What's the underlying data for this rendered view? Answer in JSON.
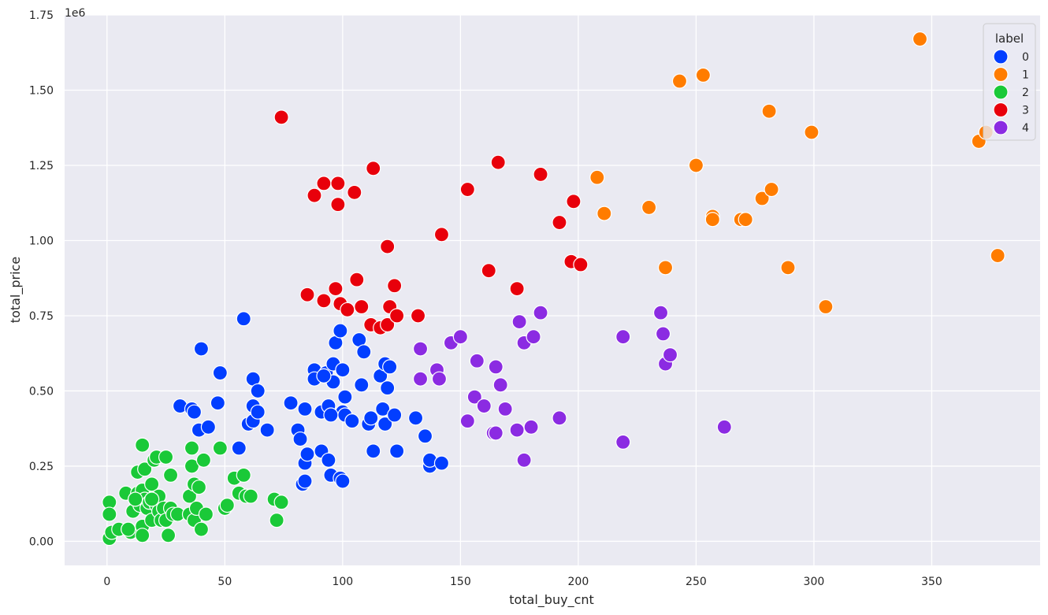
{
  "chart_data": {
    "type": "scatter",
    "xlabel": "total_buy_cnt",
    "ylabel": "total_price",
    "y_offset_text": "1e6",
    "xlim": [
      -18,
      396
    ],
    "ylim": [
      -0.08,
      1.75
    ],
    "x_ticks": [
      0,
      50,
      100,
      150,
      200,
      250,
      300,
      350
    ],
    "y_ticks": [
      0.0,
      0.25,
      0.5,
      0.75,
      1.0,
      1.25,
      1.5,
      1.75
    ],
    "y_tick_labels": [
      "0.00",
      "0.25",
      "0.50",
      "0.75",
      "1.00",
      "1.25",
      "1.50",
      "1.75"
    ],
    "grid": true,
    "legend": {
      "title": "label",
      "placement": "top-right"
    },
    "series": [
      {
        "name": "0",
        "color": "#023eff",
        "points": [
          [
            58,
            0.74
          ],
          [
            40,
            0.64
          ],
          [
            48,
            0.56
          ],
          [
            31,
            0.45
          ],
          [
            36,
            0.44
          ],
          [
            37,
            0.43
          ],
          [
            39,
            0.37
          ],
          [
            43,
            0.38
          ],
          [
            47,
            0.46
          ],
          [
            56,
            0.31
          ],
          [
            60,
            0.39
          ],
          [
            62,
            0.4
          ],
          [
            62,
            0.45
          ],
          [
            64,
            0.43
          ],
          [
            62,
            0.54
          ],
          [
            64,
            0.5
          ],
          [
            68,
            0.37
          ],
          [
            78,
            0.46
          ],
          [
            81,
            0.37
          ],
          [
            82,
            0.34
          ],
          [
            83,
            0.19
          ],
          [
            84,
            0.2
          ],
          [
            84,
            0.26
          ],
          [
            85,
            0.29
          ],
          [
            84,
            0.44
          ],
          [
            88,
            0.57
          ],
          [
            88,
            0.54
          ],
          [
            91,
            0.43
          ],
          [
            91,
            0.3
          ],
          [
            93,
            0.56
          ],
          [
            94,
            0.45
          ],
          [
            94,
            0.27
          ],
          [
            95,
            0.22
          ],
          [
            96,
            0.59
          ],
          [
            96,
            0.53
          ],
          [
            97,
            0.66
          ],
          [
            99,
            0.7
          ],
          [
            99,
            0.21
          ],
          [
            100,
            0.2
          ],
          [
            100,
            0.57
          ],
          [
            100,
            0.43
          ],
          [
            101,
            0.48
          ],
          [
            101,
            0.42
          ],
          [
            104,
            0.4
          ],
          [
            107,
            0.67
          ],
          [
            108,
            0.52
          ],
          [
            109,
            0.63
          ],
          [
            111,
            0.39
          ],
          [
            112,
            0.41
          ],
          [
            113,
            0.3
          ],
          [
            116,
            0.55
          ],
          [
            117,
            0.44
          ],
          [
            118,
            0.39
          ],
          [
            118,
            0.59
          ],
          [
            119,
            0.51
          ],
          [
            120,
            0.58
          ],
          [
            122,
            0.42
          ],
          [
            123,
            0.3
          ],
          [
            131,
            0.41
          ],
          [
            135,
            0.35
          ],
          [
            137,
            0.25
          ],
          [
            137,
            0.27
          ],
          [
            142,
            0.26
          ],
          [
            95,
            0.42
          ],
          [
            92,
            0.55
          ]
        ]
      },
      {
        "name": "1",
        "color": "#ff7c00",
        "points": [
          [
            345,
            1.67
          ],
          [
            243,
            1.53
          ],
          [
            253,
            1.55
          ],
          [
            281,
            1.43
          ],
          [
            299,
            1.36
          ],
          [
            370,
            1.33
          ],
          [
            373,
            1.36
          ],
          [
            250,
            1.25
          ],
          [
            208,
            1.21
          ],
          [
            211,
            1.09
          ],
          [
            230,
            1.11
          ],
          [
            257,
            1.08
          ],
          [
            257,
            1.07
          ],
          [
            269,
            1.07
          ],
          [
            271,
            1.07
          ],
          [
            278,
            1.14
          ],
          [
            282,
            1.17
          ],
          [
            237,
            0.91
          ],
          [
            289,
            0.91
          ],
          [
            378,
            0.95
          ],
          [
            305,
            0.78
          ]
        ]
      },
      {
        "name": "2",
        "color": "#1ac938",
        "points": [
          [
            1,
            0.13
          ],
          [
            1,
            0.09
          ],
          [
            1,
            0.01
          ],
          [
            2,
            0.03
          ],
          [
            5,
            0.04
          ],
          [
            8,
            0.16
          ],
          [
            9,
            0.04
          ],
          [
            10,
            0.03
          ],
          [
            11,
            0.1
          ],
          [
            12,
            0.14
          ],
          [
            13,
            0.23
          ],
          [
            13,
            0.16
          ],
          [
            14,
            0.12
          ],
          [
            15,
            0.32
          ],
          [
            15,
            0.17
          ],
          [
            15,
            0.05
          ],
          [
            15,
            0.02
          ],
          [
            16,
            0.24
          ],
          [
            16,
            0.14
          ],
          [
            17,
            0.11
          ],
          [
            18,
            0.13
          ],
          [
            19,
            0.19
          ],
          [
            19,
            0.07
          ],
          [
            20,
            0.14
          ],
          [
            20,
            0.27
          ],
          [
            21,
            0.28
          ],
          [
            21,
            0.12
          ],
          [
            22,
            0.15
          ],
          [
            22,
            0.1
          ],
          [
            23,
            0.07
          ],
          [
            24,
            0.11
          ],
          [
            25,
            0.28
          ],
          [
            25,
            0.07
          ],
          [
            26,
            0.02
          ],
          [
            27,
            0.22
          ],
          [
            27,
            0.11
          ],
          [
            28,
            0.09
          ],
          [
            30,
            0.09
          ],
          [
            35,
            0.09
          ],
          [
            35,
            0.15
          ],
          [
            36,
            0.31
          ],
          [
            36,
            0.25
          ],
          [
            37,
            0.19
          ],
          [
            37,
            0.07
          ],
          [
            38,
            0.11
          ],
          [
            39,
            0.18
          ],
          [
            40,
            0.04
          ],
          [
            41,
            0.27
          ],
          [
            42,
            0.09
          ],
          [
            48,
            0.31
          ],
          [
            50,
            0.11
          ],
          [
            51,
            0.12
          ],
          [
            54,
            0.21
          ],
          [
            56,
            0.16
          ],
          [
            58,
            0.22
          ],
          [
            59,
            0.15
          ],
          [
            61,
            0.15
          ],
          [
            71,
            0.14
          ],
          [
            72,
            0.07
          ],
          [
            74,
            0.13
          ],
          [
            9,
            0.04
          ],
          [
            12,
            0.14
          ],
          [
            19,
            0.14
          ]
        ]
      },
      {
        "name": "3",
        "color": "#e8000b",
        "points": [
          [
            74,
            1.41
          ],
          [
            88,
            1.15
          ],
          [
            92,
            1.19
          ],
          [
            98,
            1.19
          ],
          [
            98,
            1.12
          ],
          [
            105,
            1.16
          ],
          [
            113,
            1.24
          ],
          [
            119,
            0.98
          ],
          [
            166,
            1.26
          ],
          [
            184,
            1.22
          ],
          [
            153,
            1.17
          ],
          [
            142,
            1.02
          ],
          [
            198,
            1.13
          ],
          [
            192,
            1.06
          ],
          [
            162,
            0.9
          ],
          [
            197,
            0.93
          ],
          [
            201,
            0.92
          ],
          [
            174,
            0.84
          ],
          [
            85,
            0.82
          ],
          [
            92,
            0.8
          ],
          [
            97,
            0.84
          ],
          [
            99,
            0.79
          ],
          [
            102,
            0.77
          ],
          [
            106,
            0.87
          ],
          [
            108,
            0.78
          ],
          [
            112,
            0.72
          ],
          [
            116,
            0.71
          ],
          [
            119,
            0.72
          ],
          [
            120,
            0.78
          ],
          [
            122,
            0.85
          ],
          [
            123,
            0.75
          ],
          [
            132,
            0.75
          ]
        ]
      },
      {
        "name": "4",
        "color": "#8b2be2",
        "points": [
          [
            133,
            0.64
          ],
          [
            133,
            0.54
          ],
          [
            140,
            0.57
          ],
          [
            141,
            0.54
          ],
          [
            146,
            0.66
          ],
          [
            150,
            0.68
          ],
          [
            153,
            0.4
          ],
          [
            156,
            0.48
          ],
          [
            157,
            0.6
          ],
          [
            160,
            0.45
          ],
          [
            164,
            0.36
          ],
          [
            165,
            0.36
          ],
          [
            165,
            0.58
          ],
          [
            167,
            0.52
          ],
          [
            169,
            0.44
          ],
          [
            174,
            0.37
          ],
          [
            175,
            0.73
          ],
          [
            177,
            0.66
          ],
          [
            177,
            0.27
          ],
          [
            180,
            0.38
          ],
          [
            181,
            0.68
          ],
          [
            184,
            0.76
          ],
          [
            192,
            0.41
          ],
          [
            219,
            0.68
          ],
          [
            219,
            0.33
          ],
          [
            235,
            0.76
          ],
          [
            236,
            0.69
          ],
          [
            237,
            0.59
          ],
          [
            239,
            0.62
          ],
          [
            262,
            0.38
          ]
        ]
      }
    ]
  }
}
